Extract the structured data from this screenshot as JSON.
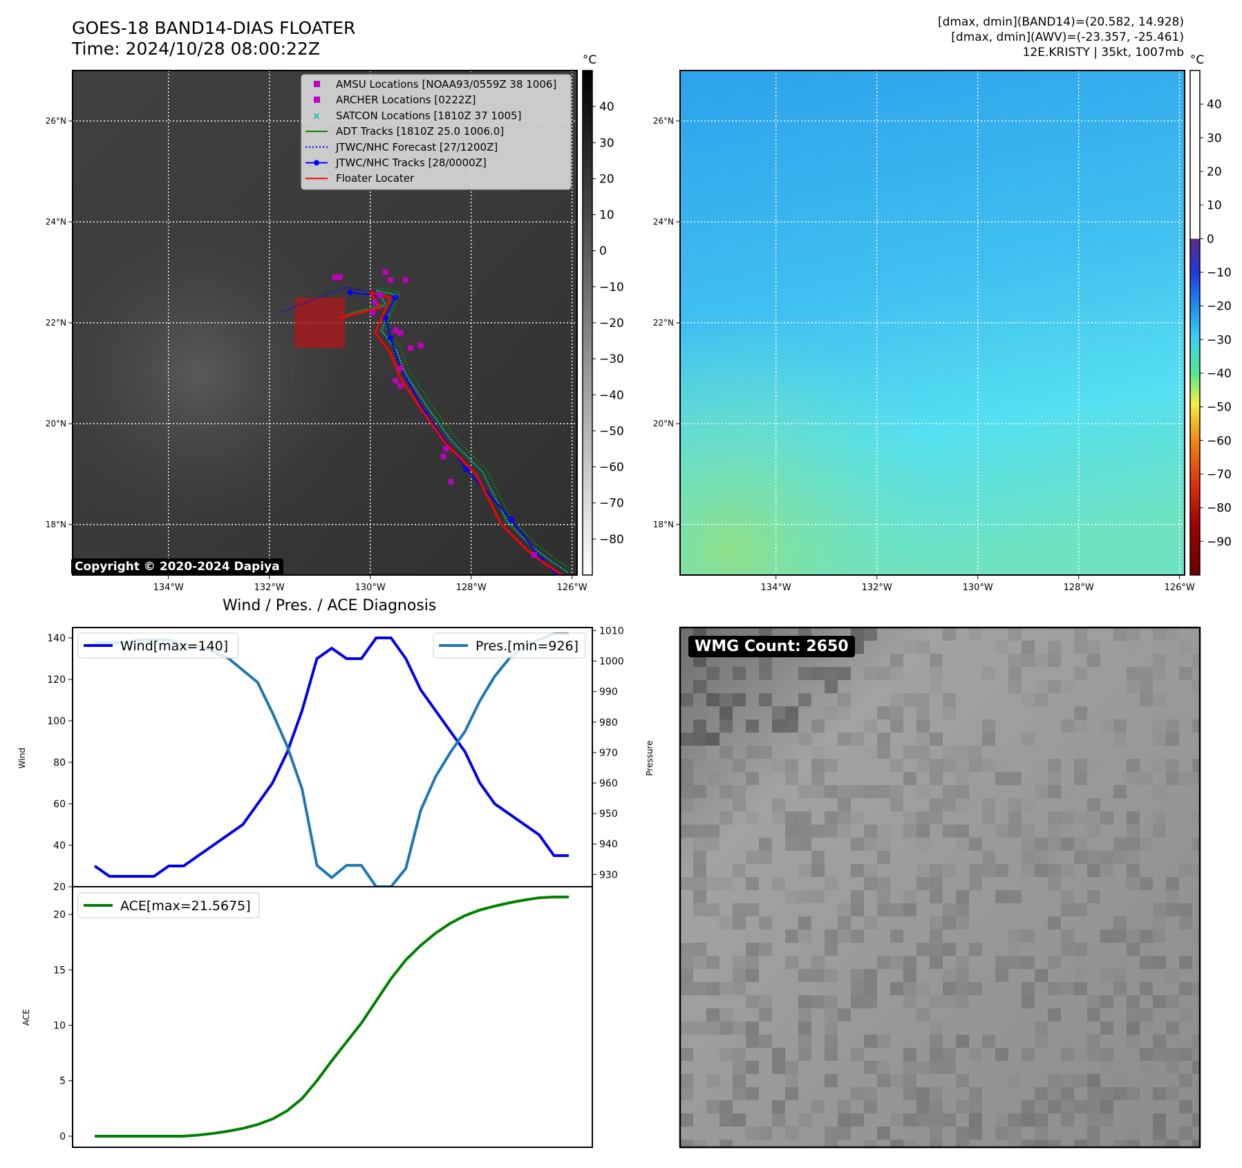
{
  "header": {
    "title_line1": "GOES-18 BAND14-DIAS FLOATER",
    "title_line2": "Time: 2024/10/28 08:00:22Z",
    "info_line1": "[dmax, dmin](BAND14)=(20.582, 14.928)",
    "info_line2": "[dmax, dmin](AWV)=(-23.357, -25.461)",
    "info_line3": "12E.KRISTY | 35kt, 1007mb"
  },
  "copyright": "Copyright © 2020-2024 Dapiya",
  "wmg_count": "WMG Count: 2650",
  "chart_data": [
    {
      "type": "map",
      "name": "band14-ir",
      "colorbar": {
        "unit": "°C",
        "ticks": [
          "40",
          "30",
          "20",
          "10",
          "0",
          "−10",
          "−20",
          "−30",
          "−40",
          "−50",
          "−60",
          "−70",
          "−80"
        ],
        "range": [
          -90,
          50
        ]
      },
      "lat_labels": [
        "26°N",
        "24°N",
        "22°N",
        "20°N",
        "18°N"
      ],
      "lon_labels": [
        "134°W",
        "132°W",
        "130°W",
        "128°W",
        "126°W"
      ],
      "legend": [
        {
          "label": "AMSU Locations [NOAA93/0559Z 38 1006]",
          "color": "#c000c0"
        },
        {
          "label": "ARCHER Locations [0222Z]",
          "color": "#c000c0"
        },
        {
          "label": "SATCON Locations [1810Z 37 1005]",
          "color": "#00c0c0"
        },
        {
          "label": "ADT Tracks [1810Z 25.0 1006.0]",
          "color": "#008000"
        },
        {
          "label": "JTWC/NHC Forecast [27/1200Z]",
          "color": "#0000ff"
        },
        {
          "label": "JTWC/NHC Tracks [28/0000Z]",
          "color": "#0000ff"
        },
        {
          "label": "Floater Locater",
          "color": "#ff0000"
        }
      ],
      "tracks": {
        "jtwc": [
          [
            -126.3,
            17.0
          ],
          [
            -126.6,
            17.3
          ],
          [
            -127.2,
            18.1
          ],
          [
            -128.1,
            19.1
          ],
          [
            -128.9,
            20.2
          ],
          [
            -129.4,
            21.1
          ],
          [
            -129.6,
            21.7
          ],
          [
            -129.7,
            22.1
          ],
          [
            -129.5,
            22.5
          ],
          [
            -130.4,
            22.6
          ]
        ],
        "forecast": [
          [
            -129.9,
            22.6
          ],
          [
            -130.5,
            22.7
          ],
          [
            -131.0,
            22.5
          ],
          [
            -131.8,
            22.2
          ]
        ],
        "floater": [
          [
            -126.2,
            17.0
          ],
          [
            -126.5,
            17.2
          ],
          [
            -126.9,
            17.5
          ],
          [
            -127.4,
            18.0
          ],
          [
            -127.9,
            19.0
          ],
          [
            -128.5,
            19.6
          ],
          [
            -129.0,
            20.3
          ],
          [
            -129.4,
            20.9
          ],
          [
            -129.6,
            21.4
          ],
          [
            -129.9,
            21.8
          ],
          [
            -129.6,
            22.5
          ],
          [
            -130.0,
            22.6
          ],
          [
            -129.8,
            22.3
          ],
          [
            -130.6,
            22.1
          ]
        ],
        "amsu": [
          [
            -130.7,
            22.9
          ],
          [
            -130.6,
            22.9
          ],
          [
            -129.7,
            23.0
          ],
          [
            -129.6,
            22.85
          ],
          [
            -129.3,
            22.85
          ],
          [
            -129.8,
            22.55
          ],
          [
            -129.9,
            22.4
          ],
          [
            -129.95,
            22.2
          ],
          [
            -129.5,
            21.85
          ],
          [
            -129.4,
            21.8
          ],
          [
            -129.2,
            21.5
          ],
          [
            -129.0,
            21.55
          ],
          [
            -129.4,
            21.1
          ],
          [
            -129.5,
            20.85
          ],
          [
            -129.4,
            20.75
          ],
          [
            -128.5,
            19.5
          ],
          [
            -128.55,
            19.35
          ],
          [
            -128.4,
            18.85
          ],
          [
            -126.75,
            17.4
          ]
        ],
        "floater_box": {
          "lon": [
            -131.5,
            -130.5
          ],
          "lat": [
            21.5,
            22.5
          ]
        }
      }
    },
    {
      "type": "map",
      "name": "awv",
      "colorbar": {
        "unit": "°C",
        "ticks": [
          "40",
          "30",
          "20",
          "10",
          "0",
          "−10",
          "−20",
          "−30",
          "−40",
          "−50",
          "−60",
          "−70",
          "−80",
          "−90"
        ],
        "range": [
          -100,
          50
        ]
      },
      "lat_labels": [
        "26°N",
        "24°N",
        "22°N",
        "20°N",
        "18°N"
      ],
      "lon_labels": [
        "134°W",
        "132°W",
        "130°W",
        "128°W",
        "126°W"
      ]
    },
    {
      "type": "line",
      "title": "Wind / Pres. / ACE Diagnosis",
      "ylabel": "Wind",
      "ylabel2": "Pressure",
      "ylim": [
        20,
        145
      ],
      "y2lim": [
        926,
        1011
      ],
      "yticks": [
        "140",
        "120",
        "100",
        "80",
        "60",
        "40",
        "20"
      ],
      "y2ticks": [
        "1010",
        "1000",
        "990",
        "980",
        "970",
        "960",
        "950",
        "940",
        "930"
      ],
      "series": [
        {
          "name": "Wind[max=140]",
          "color": "#0000ee",
          "values": [
            30,
            25,
            25,
            25,
            25,
            30,
            30,
            35,
            40,
            45,
            50,
            60,
            70,
            85,
            105,
            130,
            135,
            130,
            130,
            140,
            140,
            130,
            115,
            105,
            95,
            85,
            70,
            60,
            55,
            50,
            45,
            35,
            35
          ]
        },
        {
          "name": "Pres.[min=926]",
          "color": "#1f77b4",
          "values": [
            1006,
            1006,
            1006,
            1007,
            1007,
            1007,
            1005,
            1005,
            1003,
            1001,
            997,
            993,
            983,
            972,
            958,
            933,
            929,
            933,
            933,
            926,
            926,
            932,
            951,
            962,
            970,
            977,
            987,
            995,
            1001,
            1005,
            1007,
            1009,
            1009
          ]
        }
      ]
    },
    {
      "type": "line",
      "ylabel": "ACE",
      "ylim": [
        -1,
        22.5
      ],
      "yticks": [
        "20",
        "15",
        "10",
        "5",
        "0"
      ],
      "series": [
        {
          "name": "ACE[max=21.5675]",
          "color": "#008000",
          "values": [
            0,
            0,
            0,
            0,
            0,
            0,
            0,
            0.1,
            0.25,
            0.45,
            0.7,
            1.05,
            1.55,
            2.3,
            3.4,
            5.0,
            6.8,
            8.5,
            10.2,
            12.2,
            14.2,
            15.9,
            17.2,
            18.3,
            19.2,
            19.9,
            20.4,
            20.75,
            21.05,
            21.3,
            21.5,
            21.57,
            21.57
          ]
        }
      ]
    }
  ]
}
